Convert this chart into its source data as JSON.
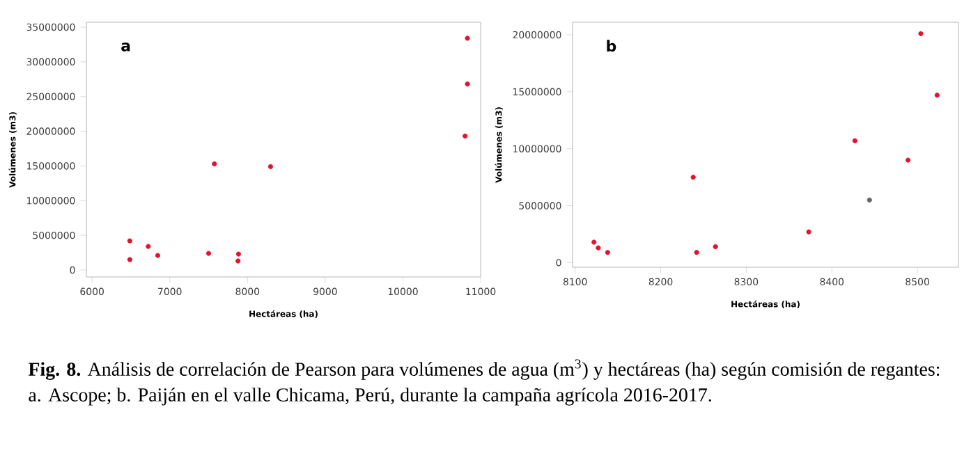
{
  "chart_data": [
    {
      "type": "scatter",
      "title": "a",
      "xlabel": "Hectáreas (ha)",
      "ylabel": "Volúmenes (m3)",
      "x": [
        6486,
        6486,
        6723,
        6845,
        7500,
        7574,
        7884,
        7878,
        8297,
        10800,
        10830,
        10830
      ],
      "values": [
        4200000,
        1500000,
        3400000,
        2100000,
        2400000,
        15300000,
        2300000,
        1300000,
        14900000,
        19300000,
        26800000,
        33400000
      ],
      "color": "#e3122d",
      "marker": "circle",
      "xlim": [
        5927,
        11000
      ],
      "ylim": [
        -1000000,
        35700000
      ],
      "xticks": [
        6000,
        7000,
        8000,
        9000,
        10000,
        11000
      ],
      "yticks": [
        0,
        5000000,
        10000000,
        15000000,
        20000000,
        25000000,
        30000000,
        35000000
      ],
      "annotations": [
        "**Fig. 8.** Análisis de correlación de Pearson para volúmenes de agua (m$^{3}$) y hectáreas (ha) según comisión de regantes: a. Ascope;  b. Paiján en el valle Chicama, Perú, durante la campaña agrícola 2016-2017."
      ]
    },
    {
      "type": "scatter",
      "title": "b",
      "xlabel": "Hectáreas (ha)",
      "ylabel": "Volúmenes (m3)",
      "x": [
        8122,
        8127,
        8138,
        8238,
        8242,
        8264,
        8373,
        8427,
        8444,
        8489,
        8504,
        8523
      ],
      "values": [
        1800000,
        1300000,
        900000,
        7500000,
        900000,
        1400000,
        2700000,
        10700000,
        5500000,
        9000000,
        20100000,
        14700000
      ],
      "colors": [
        "#e3122d",
        "#e3122d",
        "#e3122d",
        "#e3122d",
        "#e3122d",
        "#e3122d",
        "#e3122d",
        "#e3122d",
        "#666666",
        "#e3122d",
        "#e3122d",
        "#e3122d"
      ],
      "marker": "circle",
      "xlim": [
        8097,
        8548
      ],
      "ylim": [
        -400000,
        21100000
      ],
      "xticks": [
        8100,
        8200,
        8300,
        8400,
        8500
      ],
      "yticks": [
        0,
        5000000,
        10000000,
        15000000,
        20000000
      ]
    }
  ]
}
